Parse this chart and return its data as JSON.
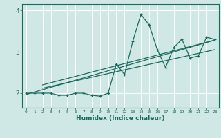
{
  "xlabel": "Humidex (Indice chaleur)",
  "ylabel": "",
  "xlim": [
    -0.5,
    23.5
  ],
  "ylim": [
    1.65,
    4.15
  ],
  "yticks": [
    2,
    3,
    4
  ],
  "xticks": [
    0,
    1,
    2,
    3,
    4,
    5,
    6,
    7,
    8,
    9,
    10,
    11,
    12,
    13,
    14,
    15,
    16,
    17,
    18,
    19,
    20,
    21,
    22,
    23
  ],
  "bg_color": "#cfe8e5",
  "line_color": "#1a6b5e",
  "grid_color": "#ffffff",
  "data_x": [
    0,
    1,
    2,
    3,
    4,
    5,
    6,
    7,
    8,
    9,
    10,
    11,
    12,
    13,
    14,
    15,
    16,
    17,
    18,
    19,
    20,
    21,
    22,
    23
  ],
  "data_y": [
    2.0,
    2.0,
    2.0,
    2.0,
    1.95,
    1.95,
    2.0,
    2.0,
    1.95,
    1.93,
    2.0,
    2.7,
    2.45,
    3.25,
    3.9,
    3.65,
    3.05,
    2.62,
    3.1,
    3.3,
    2.85,
    2.9,
    3.35,
    3.3
  ],
  "trend1_x": [
    2,
    23
  ],
  "trend1_y": [
    2.2,
    3.28
  ],
  "trend2_x": [
    2,
    23
  ],
  "trend2_y": [
    2.12,
    3.05
  ],
  "trend3_x": [
    0,
    23
  ],
  "trend3_y": [
    1.97,
    3.28
  ]
}
